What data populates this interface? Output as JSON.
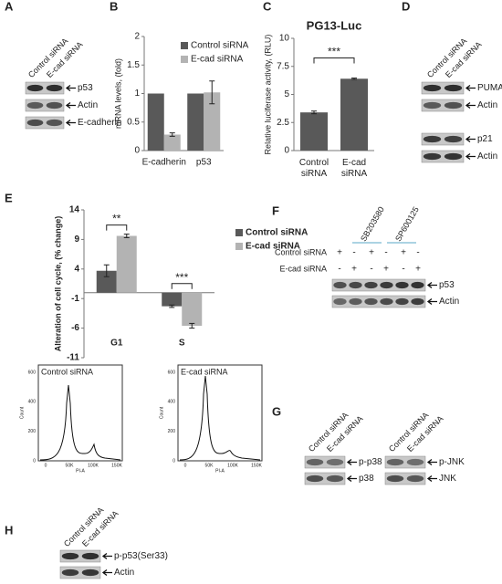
{
  "chart_data": [
    {
      "type": "bar",
      "panel": "B",
      "ylabel": "mRNA levels, (fold)",
      "categories": [
        "E-cadherin",
        "p53"
      ],
      "series": [
        {
          "name": "Control siRNA",
          "color": "#595959",
          "values": [
            1,
            1
          ]
        },
        {
          "name": "E-cad siRNA",
          "color": "#b3b3b3",
          "values": [
            0.28,
            1.02
          ],
          "errors": [
            0.03,
            0.2
          ]
        }
      ],
      "ylim": [
        0,
        2
      ],
      "yticks": [
        0,
        0.5,
        1,
        1.5,
        2
      ],
      "legend": "upper right"
    },
    {
      "type": "bar",
      "panel": "C",
      "title": "PG13-Luc",
      "ylabel": "Relative luciferase activity, (RLU)",
      "categories": [
        "Control siRNA",
        "E-cad siRNA"
      ],
      "series": [
        {
          "color": "#595959",
          "values": [
            3.4,
            6.4
          ],
          "errors": [
            0.12,
            0.06
          ]
        }
      ],
      "ylim": [
        0,
        10
      ],
      "yticks": [
        0,
        2.5,
        5,
        7.5,
        10
      ],
      "annotations": [
        "***"
      ]
    },
    {
      "type": "bar",
      "panel": "E",
      "ylabel": "Alteration of cell cycle, (% change)",
      "categories": [
        "G1",
        "S"
      ],
      "series": [
        {
          "name": "Control siRNA",
          "color": "#595959",
          "values": [
            3.7,
            -2.3
          ],
          "errors": [
            1.0,
            0.2
          ]
        },
        {
          "name": "E-cad siRNA",
          "color": "#b3b3b3",
          "values": [
            9.6,
            -5.6
          ],
          "errors": [
            0.3,
            0.4
          ]
        }
      ],
      "ylim": [
        -11,
        14
      ],
      "yticks": [
        14,
        9,
        4,
        -1,
        -6,
        -11
      ],
      "annotations": [
        "**",
        "***"
      ],
      "legend": "right"
    }
  ],
  "blot_A": {
    "panel": "A",
    "columns": [
      "Control siRNA",
      "E-cad siRNA"
    ],
    "bands": [
      "p53",
      "Actin",
      "E-cadherin"
    ]
  },
  "blot_D": {
    "panel": "D",
    "columns": [
      "Control siRNA",
      "E-cad siRNA"
    ],
    "bands": [
      "PUMA",
      "Actin",
      "p21",
      "Actin"
    ]
  },
  "blot_F": {
    "panel": "F",
    "treatments": [
      "SB203580",
      "SP600125"
    ],
    "rows": [
      {
        "label": "Control siRNA",
        "signs": [
          "+",
          "-",
          "+",
          "-",
          "+",
          "-"
        ]
      },
      {
        "label": "E-cad siRNA",
        "signs": [
          "-",
          "+",
          "-",
          "+",
          "-",
          "+"
        ]
      }
    ],
    "bands": [
      "p53",
      "Actin"
    ]
  },
  "blot_G": {
    "panel": "G",
    "left": {
      "columns": [
        "Control siRNA",
        "E-cad siRNA"
      ],
      "bands": [
        "p-p38",
        "p38"
      ]
    },
    "right": {
      "columns": [
        "Control siRNA",
        "E-cad siRNA"
      ],
      "bands": [
        "p-JNK",
        "JNK"
      ]
    }
  },
  "blot_H": {
    "panel": "H",
    "columns": [
      "Control siRNA",
      "E-cad siRNA"
    ],
    "bands": [
      "p-p53(Ser33)",
      "Actin"
    ]
  },
  "flow": [
    {
      "title": "Control siRNA",
      "yticks": [
        "0",
        "200",
        "400",
        "600"
      ],
      "xticks": [
        "0",
        "50K",
        "100K",
        "150K"
      ],
      "ylabel": "Count",
      "xlabel": "PI-A"
    },
    {
      "title": "E-cad siRNA",
      "yticks": [
        "0",
        "200",
        "400",
        "600"
      ],
      "xticks": [
        "0",
        "50K",
        "100K",
        "150K"
      ],
      "ylabel": "Count",
      "xlabel": "PI-A"
    }
  ]
}
